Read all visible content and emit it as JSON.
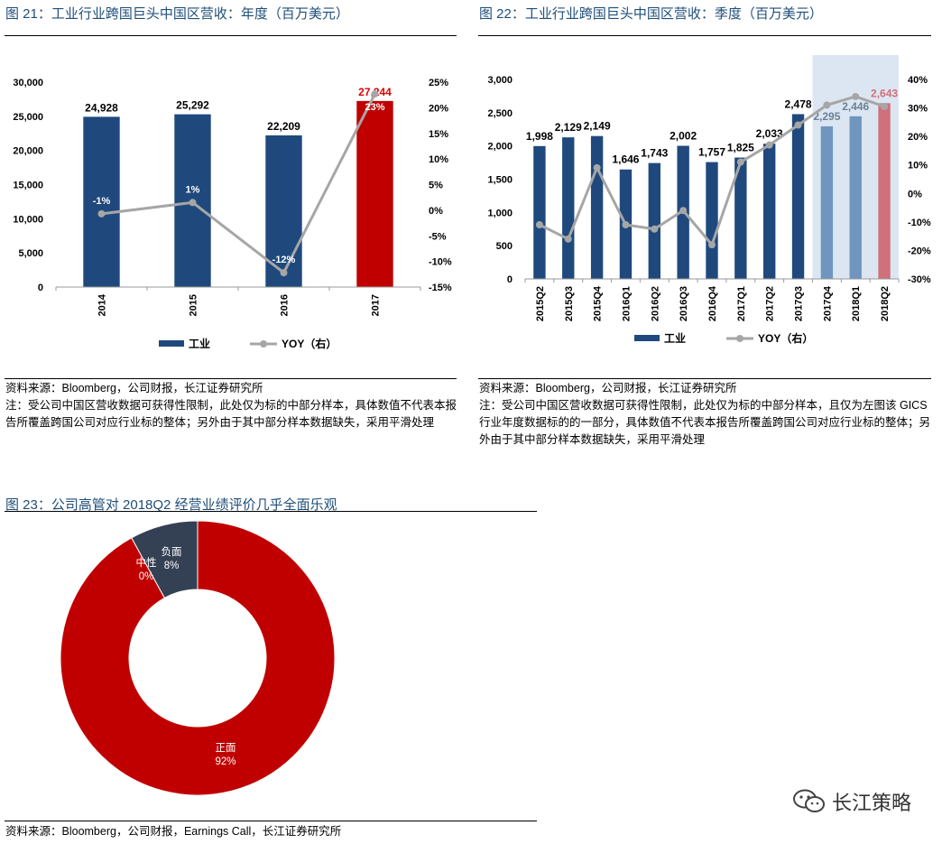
{
  "fig21": {
    "title": "图 21：工业行业跨国巨头中国区营收：年度（百万美元）",
    "source": "资料来源：Bloomberg，公司财报，长江证券研究所",
    "note": "注：受公司中国区营收数据可获得性限制，此处仅为标的中部分样本，具体数值不代表本报告所覆盖跨国公司对应行业标的整体；另外由于其中部分样本数据缺失，采用平滑处理"
  },
  "fig22": {
    "title": "图 22：工业行业跨国巨头中国区营收：季度（百万美元）",
    "source": "资料来源：Bloomberg，公司财报，长江证券研究所",
    "note": "注：受公司中国区营收数据可获得性限制，此处仅为标的中部分样本，且仅为左图该 GICS 行业年度数据标的的一部分，具体数值不代表本报告所覆盖跨国公司对应行业标的整体；另外由于其中部分样本数据缺失，采用平滑处理"
  },
  "fig23": {
    "title": "图 23：公司高管对 2018Q2 经营业绩评价几乎全面乐观",
    "source": "资料来源：Bloomberg，公司财报，Earnings Call，长江证券研究所"
  },
  "watermark": {
    "text": "长江策略",
    "icon": "wechat-icon"
  },
  "chart_data": [
    {
      "type": "bar",
      "categories": [
        "2014",
        "2015",
        "2016",
        "2017"
      ],
      "series": [
        {
          "name": "工业",
          "type": "bar",
          "axis": "left",
          "values": [
            24928,
            25292,
            22209,
            27244
          ],
          "labels": [
            "24,928",
            "25,292",
            "22,209",
            "27,244"
          ],
          "colors": [
            "#1f497d",
            "#1f497d",
            "#1f497d",
            "#c00000"
          ]
        },
        {
          "name": "YOY（右）",
          "type": "line",
          "axis": "right",
          "values": [
            -0.7,
            1.5,
            -12.2,
            22.7
          ],
          "labels": [
            "-1%",
            "1%",
            "-12%",
            "23%"
          ]
        }
      ],
      "left_axis": {
        "ylim": [
          0,
          30000
        ],
        "ticks": [
          0,
          5000,
          10000,
          15000,
          20000,
          25000,
          30000
        ],
        "tick_labels": [
          "0",
          "5,000",
          "10,000",
          "15,000",
          "20,000",
          "25,000",
          "30,000"
        ]
      },
      "right_axis": {
        "ylim": [
          -15,
          25
        ],
        "ticks": [
          -15,
          -10,
          -5,
          0,
          5,
          10,
          15,
          20,
          25
        ],
        "tick_labels": [
          "-15%",
          "-10%",
          "-5%",
          "0%",
          "5%",
          "10%",
          "15%",
          "20%",
          "25%"
        ]
      },
      "legend": "bottom"
    },
    {
      "type": "bar",
      "categories": [
        "2015Q2",
        "2015Q3",
        "2015Q4",
        "2016Q1",
        "2016Q2",
        "2016Q3",
        "2016Q4",
        "2017Q1",
        "2017Q2",
        "2017Q3",
        "2017Q4",
        "2018Q1",
        "2018Q2"
      ],
      "series": [
        {
          "name": "工业",
          "type": "bar",
          "axis": "left",
          "values": [
            1998,
            2129,
            2149,
            1646,
            1743,
            2002,
            1757,
            1825,
            2033,
            2478,
            2295,
            2446,
            2643
          ],
          "labels": [
            "1,998",
            "2,129",
            "2,149",
            "1,646",
            "1,743",
            "2,002",
            "1,757",
            "1,825",
            "2,033",
            "2,478",
            "2,295",
            "2,446",
            "2,643"
          ],
          "colors": [
            "#1f497d",
            "#1f497d",
            "#1f497d",
            "#1f497d",
            "#1f497d",
            "#1f497d",
            "#1f497d",
            "#1f497d",
            "#1f497d",
            "#1f497d",
            "#7096bf",
            "#7096bf",
            "#d0707a"
          ]
        },
        {
          "name": "YOY（右）",
          "type": "line",
          "axis": "right",
          "values": [
            -11,
            -16,
            9,
            -11,
            -12.5,
            -6,
            -18,
            11,
            17,
            24,
            31,
            34,
            30.5
          ]
        }
      ],
      "left_axis": {
        "ylim": [
          0,
          3000
        ],
        "ticks": [
          0,
          500,
          1000,
          1500,
          2000,
          2500,
          3000
        ],
        "tick_labels": [
          "0",
          "500",
          "1,000",
          "1,500",
          "2,000",
          "2,500",
          "3,000"
        ]
      },
      "right_axis": {
        "ylim": [
          -30,
          40
        ],
        "ticks": [
          -30,
          -20,
          -10,
          0,
          10,
          20,
          30,
          40
        ],
        "tick_labels": [
          "-30%",
          "-20%",
          "-10%",
          "0%",
          "10%",
          "20%",
          "30%",
          "40%"
        ]
      },
      "highlight_band": [
        "2017Q4",
        "2018Q2"
      ],
      "legend": "bottom"
    },
    {
      "type": "pie",
      "donut": true,
      "categories": [
        "正面",
        "中性",
        "负面"
      ],
      "values": [
        92,
        0,
        8
      ],
      "labels": [
        "92%",
        "0%",
        "8%"
      ],
      "colors": [
        "#c00000",
        "#ffffff",
        "#344154"
      ]
    }
  ]
}
